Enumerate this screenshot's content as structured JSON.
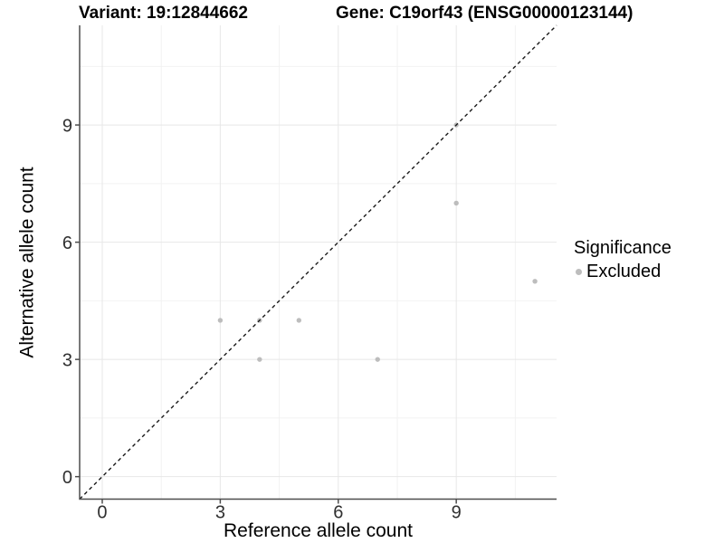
{
  "chart_data": {
    "type": "scatter",
    "titles": {
      "left": "Variant: 19:12844662",
      "right": "Gene: C19orf43 (ENSG00000123144)"
    },
    "xlabel": "Reference allele count",
    "ylabel": "Alternative allele count",
    "xlim": [
      -0.575,
      11.55
    ],
    "ylim": [
      -0.575,
      11.55
    ],
    "xticks": [
      0,
      3,
      6,
      9
    ],
    "yticks": [
      0,
      3,
      6,
      9
    ],
    "xminor": [
      1.5,
      4.5,
      7.5,
      10.5
    ],
    "yminor": [
      1.5,
      4.5,
      7.5,
      10.5
    ],
    "grid": true,
    "identity_line": {
      "slope": 1,
      "intercept": 0,
      "style": "dashed"
    },
    "series": [
      {
        "name": "Excluded",
        "points": [
          [
            3,
            4
          ],
          [
            4,
            3
          ],
          [
            4,
            4
          ],
          [
            5,
            4
          ],
          [
            7,
            3
          ],
          [
            9,
            7
          ],
          [
            9,
            9
          ],
          [
            11,
            5
          ]
        ]
      }
    ],
    "legend": {
      "title": "Significance",
      "position": "right",
      "items": [
        {
          "label": "Excluded",
          "color": "#bdbdbd"
        }
      ]
    },
    "colors": {
      "point": "#bdbdbd",
      "identity_line": "#1a1a1a",
      "axis_line": "#4d4d4d",
      "grid_major": "#e7e7e7",
      "grid_minor": "#f2f2f2",
      "tick_label": "#303030",
      "background": "#ffffff"
    }
  }
}
